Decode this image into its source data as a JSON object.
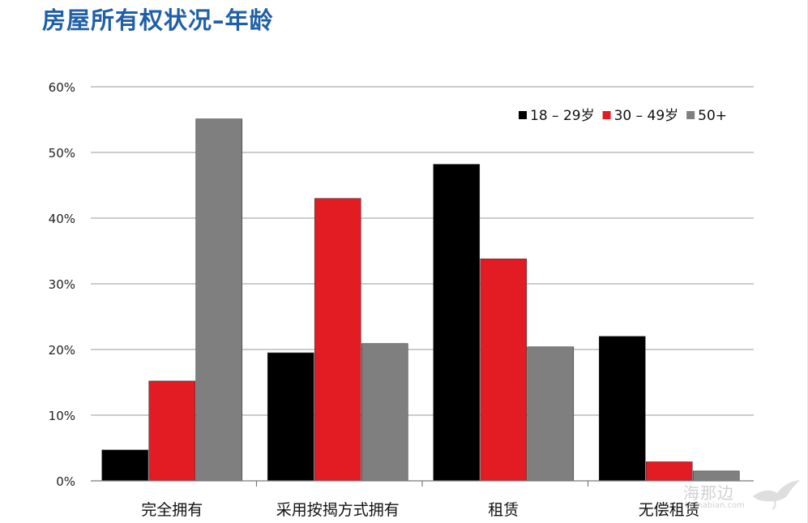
{
  "title": "房屋所有权状况–年龄",
  "watermark": {
    "text": "海那边",
    "sub": "hainabian.com"
  },
  "chart_data": {
    "type": "bar",
    "title": "房屋所有权状况–年龄",
    "categories": [
      "完全拥有",
      "采用按揭方式拥有",
      "租赁",
      "无偿租赁"
    ],
    "series": [
      {
        "name": "18 – 29岁",
        "color": "#000000",
        "values": [
          4.7,
          19.5,
          48.2,
          22.0
        ]
      },
      {
        "name": "30 – 49岁",
        "color": "#e31b23",
        "values": [
          15.2,
          43.0,
          33.8,
          2.9
        ]
      },
      {
        "name": "50+",
        "color": "#7f7f7f",
        "values": [
          55.1,
          20.9,
          20.4,
          1.5
        ]
      }
    ],
    "ylim": [
      0,
      60
    ],
    "yticks": [
      0,
      10,
      20,
      30,
      40,
      50,
      60
    ],
    "ytick_labels": [
      "0%",
      "10%",
      "20%",
      "30%",
      "40%",
      "50%",
      "60%"
    ],
    "grid": true,
    "legend": "top-right",
    "xlabel": "",
    "ylabel": ""
  }
}
